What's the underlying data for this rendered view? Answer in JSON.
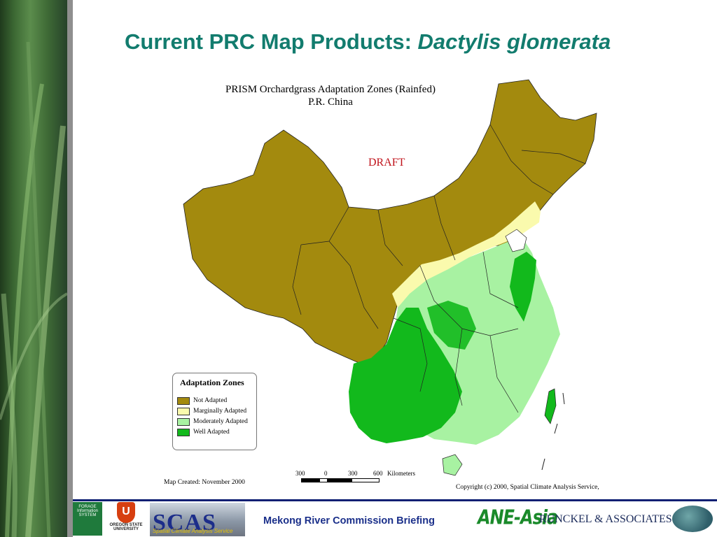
{
  "title": {
    "main": "Current PRC Map Products: ",
    "species": "Dactylis glomerata"
  },
  "map": {
    "title_line1": "PRISM Orchardgrass Adaptation Zones  (Rainfed)",
    "title_line2": "P.R. China",
    "draft_label": "DRAFT",
    "created": "Map Created:  November 2000",
    "copyright": "Copyright (c) 2000, Spatial Climate Analysis Service,",
    "scale": {
      "labels": [
        "300",
        "0",
        "300",
        "600"
      ],
      "unit": "Kilometers"
    },
    "legend": {
      "title": "Adaptation Zones",
      "items": [
        {
          "label": "Not Adapted",
          "color": "#a38a0e"
        },
        {
          "label": "Marginally Adapted",
          "color": "#fafaad"
        },
        {
          "label": "Moderately Adapted",
          "color": "#a8f2a2"
        },
        {
          "label": "Well Adapted",
          "color": "#12b91c"
        }
      ]
    }
  },
  "footer": {
    "text": "Mekong River Commission Briefing",
    "logos": {
      "fis": "FORAGE Information SYSTEM",
      "osu": "OREGON STATE UNIVERSITY",
      "scas_big": "SCAS",
      "scas_sub": "Spatial Climate Analysis Service",
      "ane": "ANE-Asia",
      "runckel": "RUNCKEL & ASSOCIATES"
    }
  },
  "colors": {
    "title": "#127c6e",
    "footer_line": "#0c1f73",
    "draft": "#c0131b"
  }
}
